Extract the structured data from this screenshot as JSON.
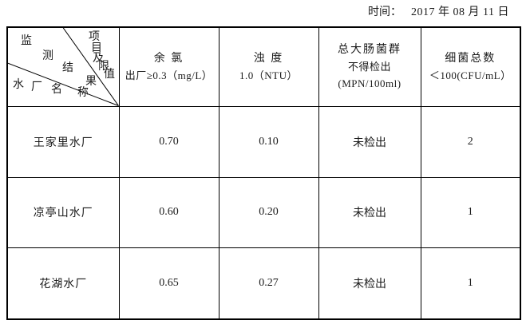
{
  "header": {
    "time_label": "时间：",
    "time_value": "2017 年 08 月 11 日"
  },
  "table": {
    "corner": {
      "monitoring_results": "监测结果",
      "items_and_limits": "项目及限值",
      "plant_name": "水厂名称"
    },
    "columns": [
      {
        "lines": [
          "余 氯",
          "出厂≥0.3（mg/L）"
        ]
      },
      {
        "lines": [
          "浊 度",
          "1.0（NTU）"
        ]
      },
      {
        "lines": [
          "总大肠菌群",
          "不得检出",
          "(MPN/100ml)"
        ]
      },
      {
        "lines": [
          "细菌总数",
          "＜100(CFU/mL）"
        ]
      }
    ],
    "rows": [
      {
        "name": "王家里水厂",
        "values": [
          "0.70",
          "0.10",
          "未检出",
          "2"
        ]
      },
      {
        "name": "凉亭山水厂",
        "values": [
          "0.60",
          "0.20",
          "未检出",
          "1"
        ]
      },
      {
        "name": "花湖水厂",
        "values": [
          "0.65",
          "0.27",
          "未检出",
          "1"
        ]
      }
    ]
  },
  "colors": {
    "border": "#000000",
    "text": "#1a1a1a",
    "background": "#ffffff"
  }
}
